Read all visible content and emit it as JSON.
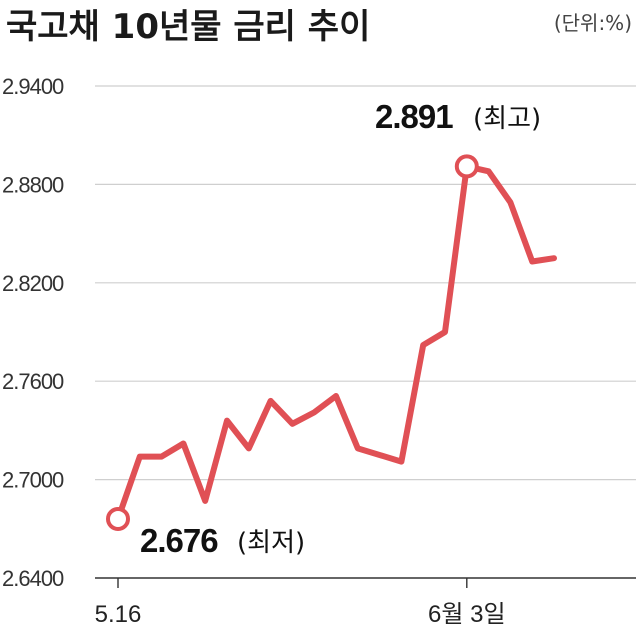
{
  "chart_data": {
    "type": "line",
    "title": "국고채 10년물 금리 추이",
    "unit": "(단위:%)",
    "ylim": [
      2.64,
      2.94
    ],
    "yticks": [
      "2.9400",
      "2.8800",
      "2.8200",
      "2.7600",
      "2.7000",
      "2.6400"
    ],
    "ytick_values": [
      2.94,
      2.88,
      2.82,
      2.76,
      2.7,
      2.64
    ],
    "x_tick_labels": [
      "5.16",
      "6월 3일"
    ],
    "x_tick_index": [
      0,
      16
    ],
    "grid": true,
    "color": "#e05055",
    "series": [
      {
        "values": [
          2.676,
          2.714,
          2.714,
          2.722,
          2.687,
          2.736,
          2.719,
          2.748,
          2.734,
          2.741,
          2.751,
          2.719,
          2.715,
          2.711,
          2.782,
          2.79,
          2.891,
          2.888,
          2.869,
          2.833,
          2.835
        ]
      }
    ],
    "annotations": [
      {
        "index": 0,
        "value_label": "2.676",
        "tag": "(최저)"
      },
      {
        "index": 16,
        "value_label": "2.891",
        "tag": "(최고)"
      }
    ]
  }
}
